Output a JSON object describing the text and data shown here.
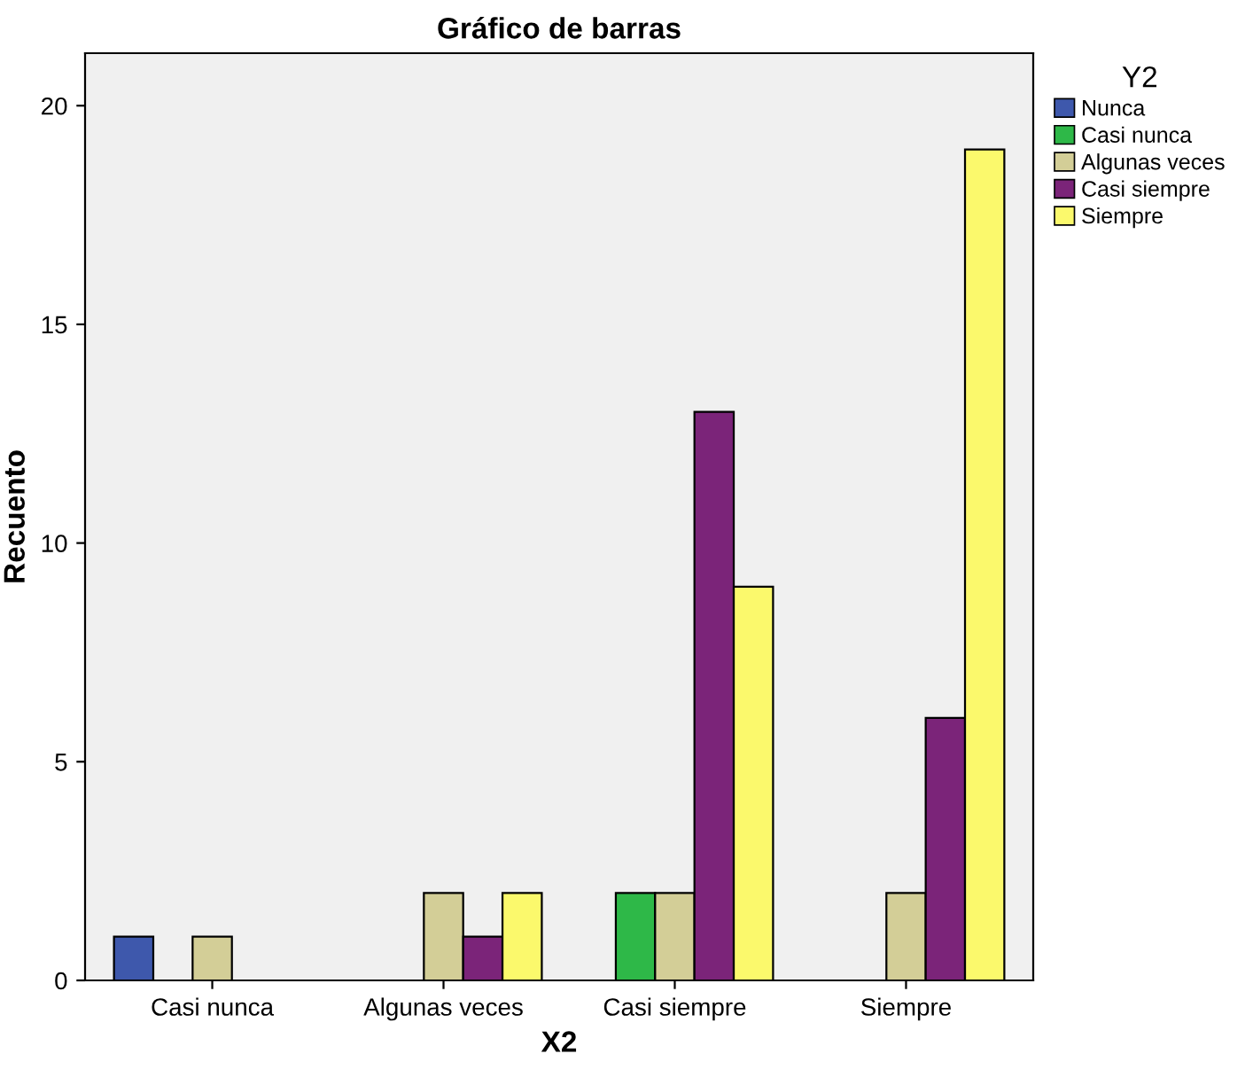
{
  "chart_data": {
    "type": "bar",
    "title": "Gráfico de barras",
    "xlabel": "X2",
    "ylabel": "Recuento",
    "legend_title": "Y2",
    "legend": "top right",
    "grid": false,
    "categories": [
      "Casi nunca",
      "Algunas veces",
      "Casi siempre",
      "Siempre"
    ],
    "series": [
      {
        "name": "Nunca",
        "color": "#3e58ac",
        "values": [
          1,
          null,
          null,
          null
        ]
      },
      {
        "name": "Casi nunca",
        "color": "#2eb848",
        "values": [
          null,
          null,
          2,
          null
        ]
      },
      {
        "name": "Algunas veces",
        "color": "#d3ce97",
        "values": [
          1,
          2,
          2,
          2
        ]
      },
      {
        "name": "Casi siempre",
        "color": "#7b2479",
        "values": [
          null,
          1,
          13,
          6
        ]
      },
      {
        "name": "Siempre",
        "color": "#fbf96c",
        "values": [
          null,
          2,
          9,
          19
        ]
      }
    ],
    "ylim": [
      0,
      21.2
    ],
    "yticks": [
      0,
      5,
      10,
      15,
      20
    ]
  }
}
